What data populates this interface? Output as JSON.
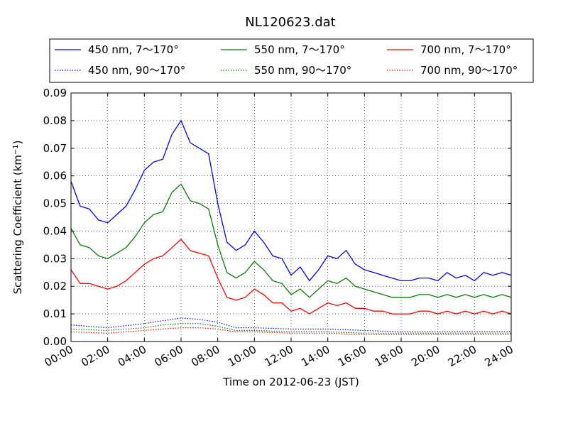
{
  "chart_data": {
    "type": "line",
    "title": "NL120623.dat",
    "xlabel": "Time on 2012-06-23 (JST)",
    "ylabel": "Scattering Coefficient (km",
    "ylabel_sup": "−1",
    "ylabel_close": ")",
    "xlim": [
      "00:00",
      "24:00"
    ],
    "ylim": [
      0,
      0.09
    ],
    "grid": true,
    "legend_position": "top",
    "x_ticks": [
      "00:00",
      "02:00",
      "04:00",
      "06:00",
      "08:00",
      "10:00",
      "12:00",
      "14:00",
      "16:00",
      "18:00",
      "20:00",
      "22:00",
      "24:00"
    ],
    "y_ticks": [
      "0.00",
      "0.01",
      "0.02",
      "0.03",
      "0.04",
      "0.05",
      "0.06",
      "0.07",
      "0.08",
      "0.09"
    ],
    "series": [
      {
        "name": "450 nm, 7～170°",
        "color": "#0000ff",
        "style": "solid",
        "x": [
          "00:00",
          "00:30",
          "01:00",
          "01:30",
          "02:00",
          "02:30",
          "03:00",
          "03:30",
          "04:00",
          "04:30",
          "05:00",
          "05:30",
          "06:00",
          "06:30",
          "07:00",
          "07:30",
          "08:00",
          "08:30",
          "09:00",
          "09:30",
          "10:00",
          "10:30",
          "11:00",
          "11:30",
          "12:00",
          "12:30",
          "13:00",
          "13:30",
          "14:00",
          "14:30",
          "15:00",
          "15:30",
          "16:00",
          "16:30",
          "17:00",
          "17:30",
          "18:00",
          "18:30",
          "19:00",
          "19:30",
          "20:00",
          "20:30",
          "21:00",
          "21:30",
          "22:00",
          "22:30",
          "23:00",
          "23:30",
          "24:00"
        ],
        "values": [
          0.058,
          0.049,
          0.048,
          0.044,
          0.043,
          0.046,
          0.049,
          0.055,
          0.062,
          0.065,
          0.066,
          0.075,
          0.08,
          0.072,
          0.07,
          0.068,
          0.05,
          0.036,
          0.033,
          0.035,
          0.04,
          0.036,
          0.031,
          0.03,
          0.024,
          0.027,
          0.022,
          0.026,
          0.031,
          0.03,
          0.033,
          0.028,
          0.026,
          0.025,
          0.024,
          0.023,
          0.022,
          0.022,
          0.023,
          0.023,
          0.022,
          0.025,
          0.023,
          0.024,
          0.022,
          0.025,
          0.024,
          0.025,
          0.024
        ]
      },
      {
        "name": "450 nm, 90～170°",
        "color": "#0000ff",
        "style": "dotted",
        "x": [
          "00:00",
          "02:00",
          "04:00",
          "05:00",
          "06:00",
          "07:00",
          "08:00",
          "09:00",
          "10:00",
          "12:00",
          "14:00",
          "16:00",
          "18:00",
          "20:00",
          "22:00",
          "24:00"
        ],
        "values": [
          0.006,
          0.005,
          0.0065,
          0.0075,
          0.0085,
          0.008,
          0.007,
          0.005,
          0.005,
          0.0045,
          0.0045,
          0.004,
          0.0035,
          0.0035,
          0.0035,
          0.0035
        ]
      },
      {
        "name": "550 nm, 7～170°",
        "color": "#008000",
        "style": "solid",
        "x": [
          "00:00",
          "00:30",
          "01:00",
          "01:30",
          "02:00",
          "02:30",
          "03:00",
          "03:30",
          "04:00",
          "04:30",
          "05:00",
          "05:30",
          "06:00",
          "06:30",
          "07:00",
          "07:30",
          "08:00",
          "08:30",
          "09:00",
          "09:30",
          "10:00",
          "10:30",
          "11:00",
          "11:30",
          "12:00",
          "12:30",
          "13:00",
          "13:30",
          "14:00",
          "14:30",
          "15:00",
          "15:30",
          "16:00",
          "16:30",
          "17:00",
          "17:30",
          "18:00",
          "18:30",
          "19:00",
          "19:30",
          "20:00",
          "20:30",
          "21:00",
          "21:30",
          "22:00",
          "22:30",
          "23:00",
          "23:30",
          "24:00"
        ],
        "values": [
          0.041,
          0.035,
          0.034,
          0.031,
          0.03,
          0.032,
          0.034,
          0.038,
          0.043,
          0.046,
          0.047,
          0.054,
          0.057,
          0.051,
          0.05,
          0.048,
          0.035,
          0.025,
          0.023,
          0.025,
          0.029,
          0.026,
          0.022,
          0.021,
          0.017,
          0.019,
          0.016,
          0.019,
          0.022,
          0.021,
          0.023,
          0.02,
          0.019,
          0.018,
          0.017,
          0.016,
          0.016,
          0.016,
          0.017,
          0.017,
          0.016,
          0.017,
          0.016,
          0.017,
          0.016,
          0.017,
          0.016,
          0.017,
          0.016
        ]
      },
      {
        "name": "550 nm, 90～170°",
        "color": "#008000",
        "style": "dotted",
        "x": [
          "00:00",
          "02:00",
          "04:00",
          "05:00",
          "06:00",
          "07:00",
          "08:00",
          "09:00",
          "10:00",
          "12:00",
          "14:00",
          "16:00",
          "18:00",
          "20:00",
          "22:00",
          "24:00"
        ],
        "values": [
          0.0045,
          0.004,
          0.005,
          0.006,
          0.0065,
          0.0065,
          0.0055,
          0.004,
          0.004,
          0.0035,
          0.0035,
          0.003,
          0.003,
          0.003,
          0.003,
          0.003
        ]
      },
      {
        "name": "700 nm, 7～170°",
        "color": "#ff0000",
        "style": "solid",
        "x": [
          "00:00",
          "00:30",
          "01:00",
          "01:30",
          "02:00",
          "02:30",
          "03:00",
          "03:30",
          "04:00",
          "04:30",
          "05:00",
          "05:30",
          "06:00",
          "06:30",
          "07:00",
          "07:30",
          "08:00",
          "08:30",
          "09:00",
          "09:30",
          "10:00",
          "10:30",
          "11:00",
          "11:30",
          "12:00",
          "12:30",
          "13:00",
          "13:30",
          "14:00",
          "14:30",
          "15:00",
          "15:30",
          "16:00",
          "16:30",
          "17:00",
          "17:30",
          "18:00",
          "18:30",
          "19:00",
          "19:30",
          "20:00",
          "20:30",
          "21:00",
          "21:30",
          "22:00",
          "22:30",
          "23:00",
          "23:30",
          "24:00"
        ],
        "values": [
          0.026,
          0.021,
          0.021,
          0.02,
          0.019,
          0.02,
          0.022,
          0.025,
          0.028,
          0.03,
          0.031,
          0.034,
          0.037,
          0.033,
          0.032,
          0.031,
          0.023,
          0.016,
          0.015,
          0.016,
          0.019,
          0.017,
          0.014,
          0.014,
          0.011,
          0.012,
          0.01,
          0.012,
          0.014,
          0.013,
          0.014,
          0.012,
          0.012,
          0.011,
          0.011,
          0.01,
          0.01,
          0.01,
          0.011,
          0.011,
          0.01,
          0.011,
          0.01,
          0.011,
          0.01,
          0.011,
          0.01,
          0.011,
          0.01
        ]
      },
      {
        "name": "700 nm, 90～170°",
        "color": "#ff0000",
        "style": "dotted",
        "x": [
          "00:00",
          "02:00",
          "04:00",
          "05:00",
          "06:00",
          "07:00",
          "08:00",
          "09:00",
          "10:00",
          "12:00",
          "14:00",
          "16:00",
          "18:00",
          "20:00",
          "22:00",
          "24:00"
        ],
        "values": [
          0.0035,
          0.003,
          0.004,
          0.0045,
          0.005,
          0.005,
          0.0045,
          0.0035,
          0.0035,
          0.003,
          0.003,
          0.0025,
          0.0025,
          0.0025,
          0.0025,
          0.0025
        ]
      }
    ]
  }
}
